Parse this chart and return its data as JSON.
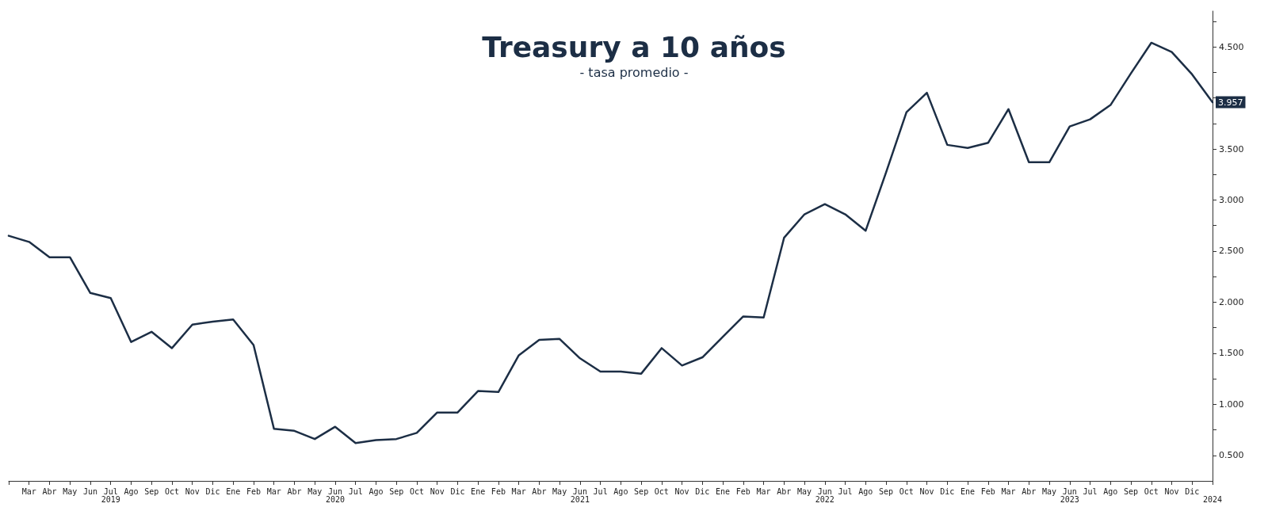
{
  "chart_data": {
    "type": "line",
    "title": "Treasury a 10 años",
    "subtitle": "- tasa promedio -",
    "categories": [
      null,
      "Mar",
      "Abr",
      "May",
      "Jun",
      "Jul\n2019",
      "Ago",
      "Sep",
      "Oct",
      "Nov",
      "Dic",
      "Ene",
      "Feb",
      "Mar",
      "Abr",
      "May",
      "Jun\n2020",
      "Jul",
      "Ago",
      "Sep",
      "Oct",
      "Nov",
      "Dic",
      "Ene",
      "Feb",
      "Mar",
      "Abr",
      "May",
      "Jun\n2021",
      "Jul",
      "Ago",
      "Sep",
      "Oct",
      "Nov",
      "Dic",
      "Ene",
      "Feb",
      "Mar",
      "Abr",
      "May",
      "Jun\n2022",
      "Jul",
      "Ago",
      "Sep",
      "Oct",
      "Nov",
      "Dic",
      "Ene",
      "Feb",
      "Mar",
      "Abr",
      "May",
      "Jun\n2023",
      "Jul",
      "Ago",
      "Sep",
      "Oct",
      "Nov",
      "Dic",
      "\n2024"
    ],
    "series": [
      {
        "color": "#1c2e45",
        "values": [
          2.65,
          2.59,
          2.44,
          2.44,
          2.09,
          2.04,
          1.61,
          1.71,
          1.55,
          1.78,
          1.81,
          1.83,
          1.58,
          0.76,
          0.74,
          0.66,
          0.78,
          0.62,
          0.65,
          0.66,
          0.72,
          0.92,
          0.92,
          1.13,
          1.12,
          1.48,
          1.63,
          1.64,
          1.45,
          1.32,
          1.32,
          1.3,
          1.55,
          1.38,
          1.46,
          1.66,
          1.86,
          1.85,
          2.63,
          2.86,
          2.96,
          2.86,
          2.7,
          3.27,
          3.86,
          4.05,
          3.54,
          3.51,
          3.56,
          3.89,
          3.37,
          3.37,
          3.72,
          3.79,
          3.93,
          4.24,
          4.54,
          4.45,
          4.23,
          3.957
        ],
        "value_labels": [
          null,
          null,
          null,
          null,
          null,
          null,
          null,
          null,
          null,
          null,
          null,
          null,
          null,
          null,
          null,
          null,
          null,
          null,
          null,
          null,
          null,
          null,
          null,
          null,
          null,
          null,
          null,
          null,
          null,
          null,
          null,
          null,
          null,
          null,
          null,
          null,
          null,
          null,
          null,
          null,
          null,
          null,
          null,
          null,
          null,
          null,
          null,
          null,
          null,
          null,
          null,
          null,
          null,
          null,
          null,
          null,
          null,
          null,
          null,
          "3.957"
        ]
      }
    ],
    "ylim": [
      0.25,
      4.85
    ],
    "yticks": [
      {
        "value": 0.5,
        "label": "0.500"
      },
      {
        "value": 0.75,
        "label": null
      },
      {
        "value": 1,
        "label": "1.000"
      },
      {
        "value": 1.25,
        "label": null
      },
      {
        "value": 1.5,
        "label": "1.500"
      },
      {
        "value": 1.75,
        "label": null
      },
      {
        "value": 2,
        "label": "2.000"
      },
      {
        "value": 2.25,
        "label": null
      },
      {
        "value": 2.5,
        "label": "2.500"
      },
      {
        "value": 2.75,
        "label": null
      },
      {
        "value": 3,
        "label": "3.000"
      },
      {
        "value": 3.25,
        "label": null
      },
      {
        "value": 3.5,
        "label": "3.500"
      },
      {
        "value": 3.75,
        "label": null
      },
      {
        "value": 4,
        "label": null
      },
      {
        "value": 4.25,
        "label": null
      },
      {
        "value": 4.5,
        "label": "4.500"
      },
      {
        "value": 4.75,
        "label": null
      }
    ],
    "grid": false,
    "marker": "none",
    "line_style": "solid"
  }
}
